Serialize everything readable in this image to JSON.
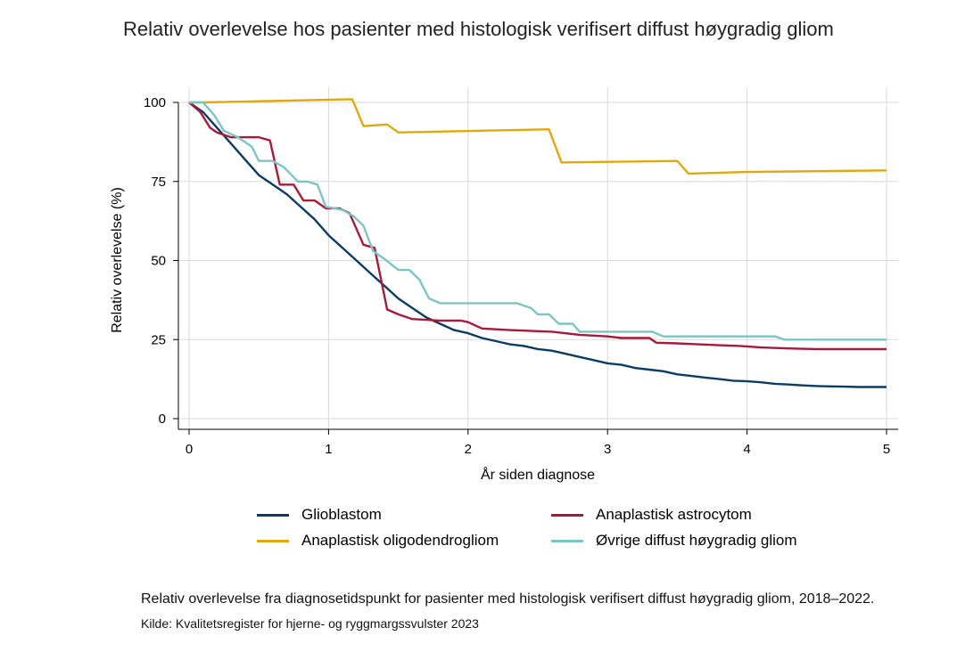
{
  "title": "Relativ overlevelse hos pasienter med histologisk verifisert diffust høygradig gliom",
  "caption": "Relativ overlevelse fra diagnosetidspunkt for pasienter med histologisk verifisert diffust høygradig gliom, 2018–2022.",
  "source": "Kilde: Kvalitetsregister for hjerne- og ryggmargssvulster 2023",
  "chart_data": {
    "type": "line",
    "title": "Relativ overlevelse hos pasienter med histologisk verifisert diffust høygradig gliom",
    "xlabel": "År siden diagnose",
    "ylabel": "Relativ overlevelse (%)",
    "xlim": [
      0,
      5
    ],
    "ylim": [
      0,
      100
    ],
    "xticks": [
      0,
      1,
      2,
      3,
      4,
      5
    ],
    "yticks": [
      0,
      25,
      50,
      75,
      100
    ],
    "grid": "horizontal and vertical",
    "legend_position": "bottom",
    "series": [
      {
        "name": "Glioblastom",
        "color": "#0b3c64",
        "points": [
          [
            0,
            100
          ],
          [
            0.1,
            97
          ],
          [
            0.2,
            92
          ],
          [
            0.3,
            87
          ],
          [
            0.4,
            82
          ],
          [
            0.5,
            77
          ],
          [
            0.6,
            74
          ],
          [
            0.7,
            71
          ],
          [
            0.8,
            67
          ],
          [
            0.9,
            63
          ],
          [
            1,
            58
          ],
          [
            1.1,
            54
          ],
          [
            1.2,
            50
          ],
          [
            1.3,
            46
          ],
          [
            1.4,
            42
          ],
          [
            1.5,
            38
          ],
          [
            1.6,
            35
          ],
          [
            1.7,
            32
          ],
          [
            1.8,
            30
          ],
          [
            1.9,
            28
          ],
          [
            2,
            27
          ],
          [
            2.1,
            25.5
          ],
          [
            2.2,
            24.5
          ],
          [
            2.3,
            23.5
          ],
          [
            2.4,
            23
          ],
          [
            2.5,
            22
          ],
          [
            2.6,
            21.5
          ],
          [
            2.7,
            20.5
          ],
          [
            2.8,
            19.5
          ],
          [
            2.9,
            18.5
          ],
          [
            3,
            17.5
          ],
          [
            3.1,
            17
          ],
          [
            3.2,
            16
          ],
          [
            3.3,
            15.5
          ],
          [
            3.4,
            15
          ],
          [
            3.5,
            14
          ],
          [
            3.6,
            13.5
          ],
          [
            3.7,
            13
          ],
          [
            3.8,
            12.5
          ],
          [
            3.9,
            12
          ],
          [
            4,
            11.8
          ],
          [
            4.1,
            11.5
          ],
          [
            4.2,
            11
          ],
          [
            4.3,
            10.8
          ],
          [
            4.4,
            10.5
          ],
          [
            4.5,
            10.3
          ],
          [
            4.6,
            10.2
          ],
          [
            4.7,
            10.1
          ],
          [
            4.8,
            10
          ],
          [
            4.9,
            10
          ],
          [
            5,
            10
          ]
        ]
      },
      {
        "name": "Anaplastisk astrocytom",
        "color": "#a8193a",
        "points": [
          [
            0,
            100
          ],
          [
            0.08,
            97
          ],
          [
            0.15,
            92
          ],
          [
            0.2,
            90.5
          ],
          [
            0.3,
            89
          ],
          [
            0.5,
            89
          ],
          [
            0.58,
            88
          ],
          [
            0.65,
            74
          ],
          [
            0.75,
            74
          ],
          [
            0.82,
            69
          ],
          [
            0.9,
            69
          ],
          [
            0.98,
            66.5
          ],
          [
            1.08,
            66.5
          ],
          [
            1.15,
            65
          ],
          [
            1.25,
            55
          ],
          [
            1.33,
            54
          ],
          [
            1.42,
            34.5
          ],
          [
            1.5,
            33
          ],
          [
            1.6,
            31.5
          ],
          [
            1.8,
            31
          ],
          [
            1.95,
            31
          ],
          [
            2,
            30.5
          ],
          [
            2.1,
            28.5
          ],
          [
            2.3,
            28
          ],
          [
            2.6,
            27.5
          ],
          [
            2.8,
            26.5
          ],
          [
            3,
            26
          ],
          [
            3.1,
            25.5
          ],
          [
            3.3,
            25.5
          ],
          [
            3.35,
            24
          ],
          [
            3.5,
            23.8
          ],
          [
            3.65,
            23.5
          ],
          [
            3.8,
            23.2
          ],
          [
            3.95,
            23
          ],
          [
            4.1,
            22.5
          ],
          [
            4.3,
            22.2
          ],
          [
            4.5,
            22
          ],
          [
            5,
            22
          ]
        ]
      },
      {
        "name": "Anaplastisk oligodendrogliom",
        "color": "#e0a80d",
        "points": [
          [
            0,
            100
          ],
          [
            0.1,
            100
          ],
          [
            1.17,
            101
          ],
          [
            1.25,
            92.5
          ],
          [
            1.42,
            93
          ],
          [
            1.5,
            90.5
          ],
          [
            2.58,
            91.5
          ],
          [
            2.67,
            81
          ],
          [
            3.5,
            81.5
          ],
          [
            3.58,
            77.5
          ],
          [
            4,
            78
          ],
          [
            5,
            78.5
          ]
        ]
      },
      {
        "name": "Øvrige diffust høygradig gliom",
        "color": "#7cc5c5",
        "points": [
          [
            0,
            100
          ],
          [
            0.1,
            100
          ],
          [
            0.18,
            96
          ],
          [
            0.25,
            91
          ],
          [
            0.35,
            89
          ],
          [
            0.45,
            86
          ],
          [
            0.5,
            81.5
          ],
          [
            0.6,
            81.5
          ],
          [
            0.68,
            79.5
          ],
          [
            0.78,
            75
          ],
          [
            0.85,
            75
          ],
          [
            0.92,
            74
          ],
          [
            0.98,
            67
          ],
          [
            1.1,
            66
          ],
          [
            1.18,
            64
          ],
          [
            1.25,
            61
          ],
          [
            1.32,
            53
          ],
          [
            1.4,
            50.5
          ],
          [
            1.5,
            47
          ],
          [
            1.58,
            47
          ],
          [
            1.65,
            44
          ],
          [
            1.72,
            38
          ],
          [
            1.8,
            36.5
          ],
          [
            2,
            36.5
          ],
          [
            2.35,
            36.5
          ],
          [
            2.45,
            35
          ],
          [
            2.5,
            33
          ],
          [
            2.58,
            33
          ],
          [
            2.65,
            30
          ],
          [
            2.75,
            30
          ],
          [
            2.8,
            27.5
          ],
          [
            3.32,
            27.5
          ],
          [
            3.4,
            26
          ],
          [
            4.2,
            26
          ],
          [
            4.27,
            25
          ],
          [
            5,
            25
          ]
        ]
      }
    ]
  }
}
